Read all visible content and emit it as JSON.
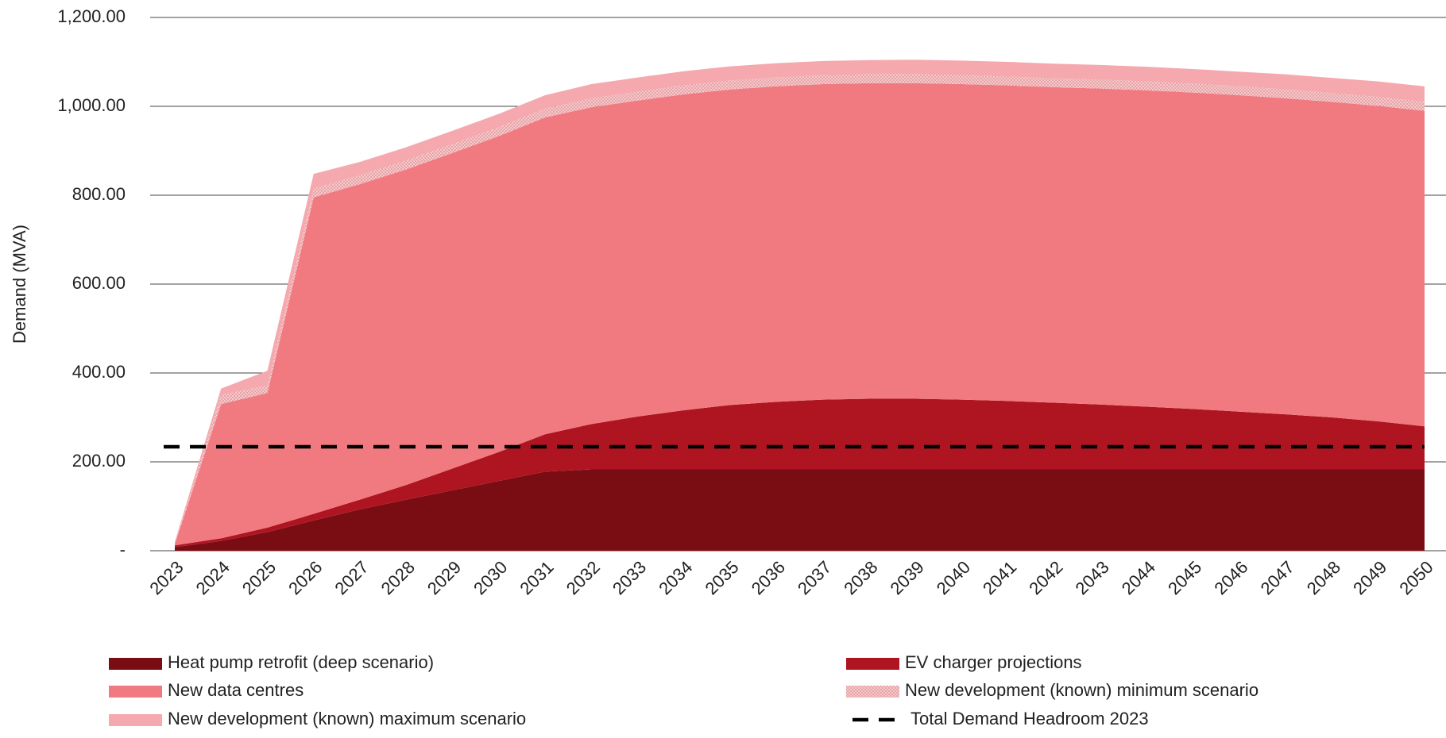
{
  "chart_data": {
    "type": "stacked_area",
    "y_label": "Demand (MVA)",
    "categories": [
      "2023",
      "2024",
      "2025",
      "2026",
      "2027",
      "2028",
      "2029",
      "2030",
      "2031",
      "2032",
      "2033",
      "2034",
      "2035",
      "2036",
      "2037",
      "2038",
      "2039",
      "2040",
      "2041",
      "2042",
      "2043",
      "2044",
      "2045",
      "2046",
      "2047",
      "2048",
      "2049",
      "2050"
    ],
    "ylim": [
      0,
      1200
    ],
    "yticks": [
      {
        "value": 0,
        "label": "-"
      },
      {
        "value": 200,
        "label": "200.00"
      },
      {
        "value": 400,
        "label": "400.00"
      },
      {
        "value": 600,
        "label": "600.00"
      },
      {
        "value": 800,
        "label": "800.00"
      },
      {
        "value": 1000,
        "label": "1,000.00"
      },
      {
        "value": 1200,
        "label": "1,200.00"
      }
    ],
    "grid": true,
    "series": [
      {
        "name": "Heat pump retrofit (deep scenario)",
        "color": "#7a0c14",
        "values": [
          8,
          22,
          42,
          68,
          93,
          115,
          136,
          157,
          178,
          183,
          183,
          183,
          183,
          183,
          183,
          183,
          183,
          183,
          183,
          183,
          183,
          183,
          183,
          183,
          183,
          183,
          183,
          183
        ]
      },
      {
        "name": "EV charger projections",
        "color": "#ae1520",
        "values": [
          4,
          6,
          10,
          15,
          22,
          33,
          49,
          65,
          84,
          102,
          119,
          133,
          145,
          152,
          157,
          159,
          159,
          157,
          154,
          150,
          146,
          141,
          136,
          130,
          124,
          117,
          108,
          97
        ]
      },
      {
        "name": "New data centres",
        "color": "#f07a80",
        "values": [
          3,
          302,
          303,
          712,
          710,
          710,
          710,
          711,
          713,
          713,
          711,
          711,
          710,
          710,
          710,
          710,
          710,
          710,
          710,
          710,
          711,
          712,
          712,
          712,
          711,
          710,
          710,
          710
        ]
      },
      {
        "name": "New development (known) minimum scenario",
        "color": "#f3b3b6",
        "pattern": "dots",
        "values": [
          2,
          20,
          17,
          20,
          20,
          20,
          20,
          20,
          20,
          20,
          20,
          20,
          20,
          20,
          20,
          20,
          20,
          20,
          20,
          20,
          20,
          20,
          20,
          20,
          20,
          20,
          20,
          20
        ]
      },
      {
        "name": " New development (known) maximum scenario",
        "color": "#f5a9ae",
        "values": [
          3,
          15,
          33,
          33,
          30,
          30,
          30,
          30,
          30,
          32,
          32,
          32,
          32,
          32,
          32,
          32,
          33,
          33,
          33,
          33,
          33,
          33,
          33,
          33,
          34,
          34,
          35,
          35
        ]
      }
    ],
    "reference_line": {
      "name": "Total Demand Headroom 2023",
      "value": 234,
      "color": "#000000",
      "dashed": true
    }
  }
}
